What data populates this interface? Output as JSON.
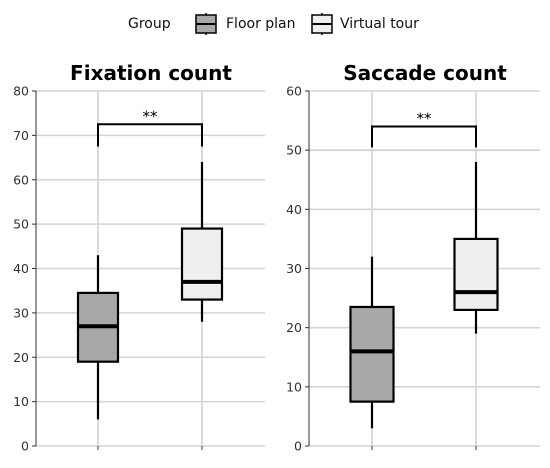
{
  "legend": {
    "title": "Group",
    "items": [
      {
        "label": "Floor plan",
        "color": "#a8a8a8"
      },
      {
        "label": "Virtual tour",
        "color": "#efefef"
      }
    ]
  },
  "chart_data": [
    {
      "type": "box",
      "title": "Fixation count",
      "categories": [
        "Floor plan",
        "Virtual tour"
      ],
      "ylim": [
        0,
        80
      ],
      "yticks": [
        0,
        10,
        20,
        30,
        40,
        50,
        60,
        70,
        80
      ],
      "grid": true,
      "series": [
        {
          "name": "Floor plan",
          "min": 6,
          "q1": 19,
          "median": 27,
          "q3": 34.5,
          "max": 43
        },
        {
          "name": "Virtual tour",
          "min": 28,
          "q1": 33,
          "median": 37,
          "q3": 49,
          "max": 64
        }
      ],
      "annotation": {
        "text": "**",
        "y": 72.5,
        "drop_to": 67.5
      }
    },
    {
      "type": "box",
      "title": "Saccade count",
      "categories": [
        "Floor plan",
        "Virtual tour"
      ],
      "ylim": [
        0,
        60
      ],
      "yticks": [
        0,
        10,
        20,
        30,
        40,
        50,
        60
      ],
      "grid": true,
      "series": [
        {
          "name": "Floor plan",
          "min": 3,
          "q1": 7.5,
          "median": 16,
          "q3": 23.5,
          "max": 32
        },
        {
          "name": "Virtual tour",
          "min": 19,
          "q1": 23,
          "median": 26,
          "q3": 35,
          "max": 48
        }
      ],
      "annotation": {
        "text": "**",
        "y": 54,
        "drop_to": 50.5
      }
    }
  ]
}
